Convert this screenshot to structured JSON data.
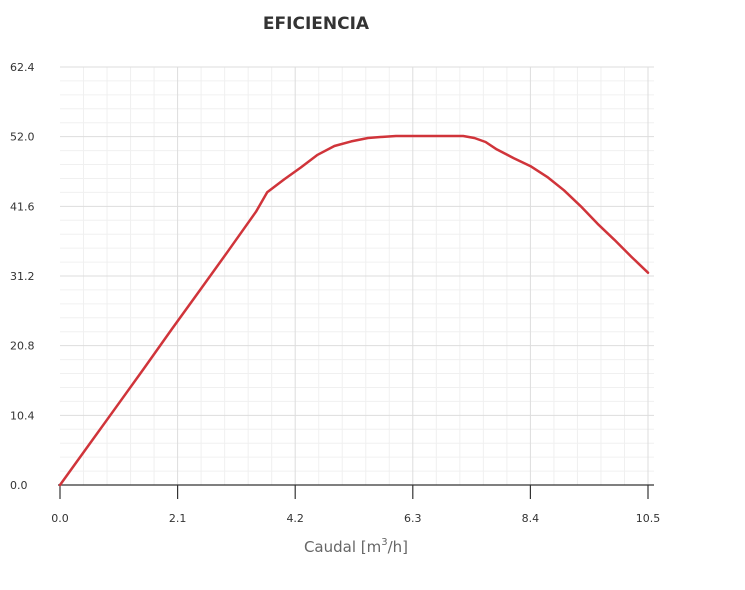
{
  "chart_data": {
    "type": "line",
    "title": "EFICIENCIA",
    "xlabel": {
      "base": "Caudal [m",
      "sup": "3",
      "tail": "/h]"
    },
    "ylabel": "",
    "xlim": [
      0,
      10.5
    ],
    "ylim": [
      0,
      62.4
    ],
    "x_ticks": [
      "0.0",
      "2.1",
      "4.2",
      "6.3",
      "8.4",
      "10.5"
    ],
    "y_ticks": [
      "0.0",
      "10.4",
      "20.8",
      "31.2",
      "41.6",
      "52.0",
      "62.4"
    ],
    "grid": true,
    "colors": {
      "line": "#d0343a",
      "grid_major": "#dddddd",
      "grid_minor": "#f0f0f0",
      "axis": "#333333"
    },
    "series": [
      {
        "x": [
          0,
          0.5,
          1.0,
          1.5,
          2.0,
          2.5,
          3.0,
          3.5,
          3.7,
          4.0,
          4.3,
          4.6,
          4.9,
          5.2,
          5.5,
          5.8,
          6.0,
          6.3,
          6.6,
          7.0,
          7.2,
          7.4,
          7.6,
          7.8,
          8.1,
          8.4,
          8.7,
          9.0,
          9.3,
          9.6,
          9.9,
          10.2,
          10.5
        ],
        "values": [
          0,
          5.8,
          11.6,
          17.4,
          23.3,
          29.1,
          34.9,
          40.8,
          43.7,
          45.6,
          47.4,
          49.3,
          50.6,
          51.3,
          51.8,
          52.0,
          52.1,
          52.1,
          52.1,
          52.1,
          52.1,
          51.8,
          51.2,
          50.1,
          48.8,
          47.6,
          46.0,
          44.0,
          41.6,
          39.0,
          36.6,
          34.1,
          31.7
        ]
      }
    ]
  }
}
